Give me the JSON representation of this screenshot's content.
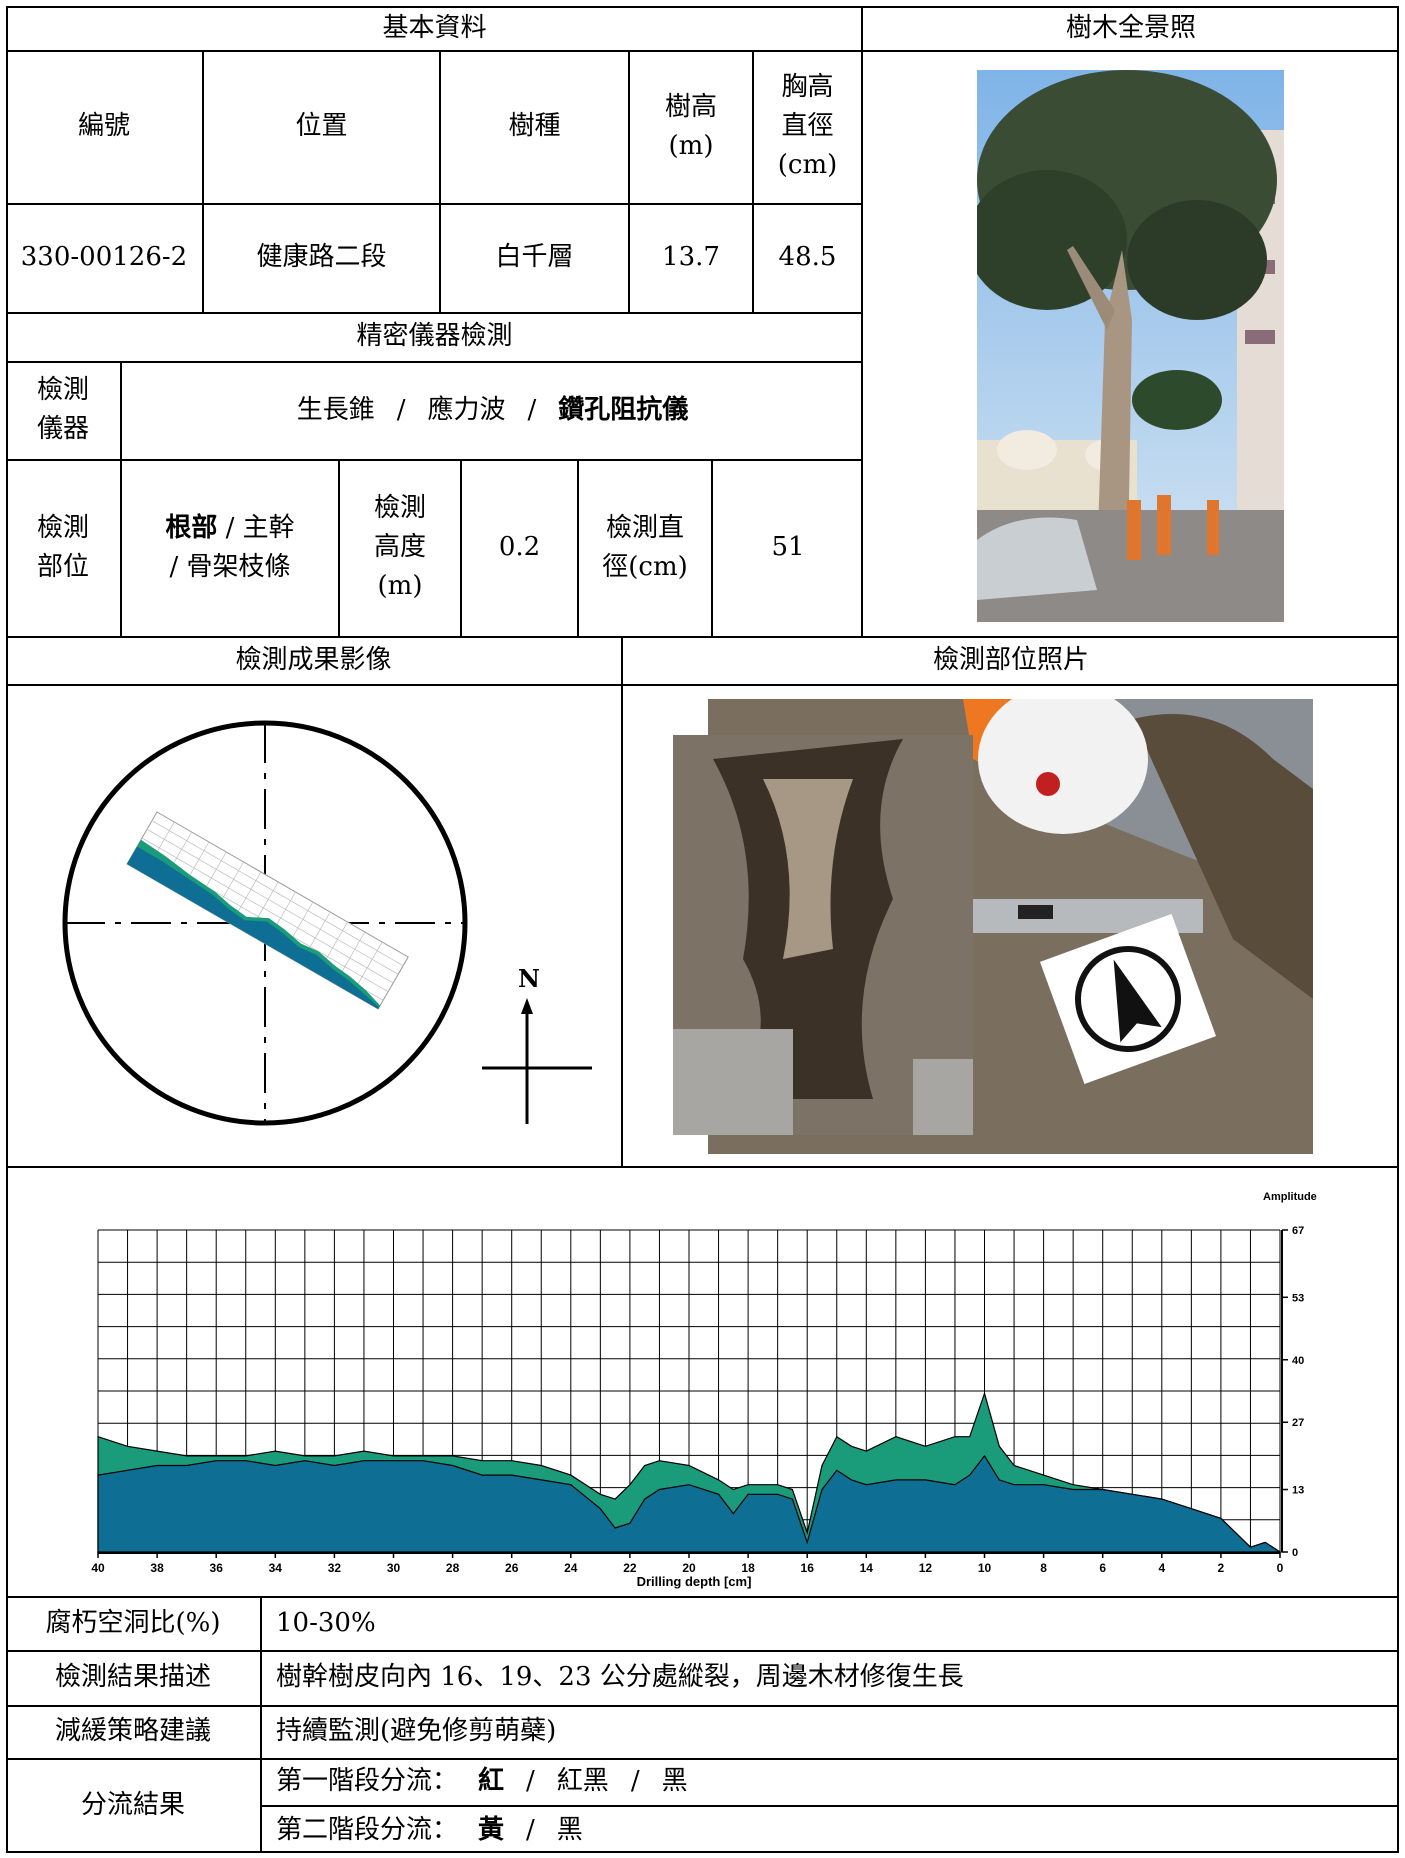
{
  "basic": {
    "header": "基本資料",
    "col_id": "編號",
    "col_location": "位置",
    "col_species": "樹種",
    "col_height_l1": "樹高",
    "col_height_l2": "(m)",
    "col_dbh_l1": "胸高",
    "col_dbh_l2": "直徑",
    "col_dbh_l3": "(cm)",
    "id": "330-00126-2",
    "location": "健康路二段",
    "species": "白千層",
    "height": "13.7",
    "dbh": "48.5"
  },
  "panorama": {
    "header": "樹木全景照"
  },
  "instrument": {
    "header": "精密儀器檢測",
    "label_l1": "檢測",
    "label_l2": "儀器",
    "opt1": "生長錐",
    "opt2": "應力波",
    "opt3": "鑽孔阻抗儀",
    "slash": "/",
    "part_label_l1": "檢測",
    "part_label_l2": "部位",
    "part_opt1": "根部",
    "part_opt2": "主幹",
    "part_opt3": "骨架枝條",
    "hgt_label_l1": "檢測",
    "hgt_label_l2": "高度",
    "hgt_label_l3": "(m)",
    "hgt_value": "0.2",
    "dia_label_l1": "檢測直",
    "dia_label_l2": "徑(cm)",
    "dia_value": "51"
  },
  "result_image": {
    "header": "檢測成果影像",
    "north": "N"
  },
  "site_photo": {
    "header": "檢測部位照片"
  },
  "chart_data": {
    "type": "area",
    "xlabel": "Drilling depth [cm]",
    "ylabel": "Amplitude [%]",
    "x_ticks": [
      40,
      38,
      36,
      34,
      32,
      30,
      28,
      26,
      24,
      22,
      20,
      18,
      16,
      14,
      12,
      10,
      8,
      6,
      4,
      2,
      0
    ],
    "y_ticks": [
      0,
      13,
      27,
      40,
      53,
      67
    ],
    "xlim": [
      40,
      0
    ],
    "ylim": [
      0,
      67
    ],
    "grid": true,
    "series": [
      {
        "color": "#1a9c7a",
        "x": [
          40,
          39,
          38,
          37,
          36,
          35,
          34,
          33,
          32,
          31,
          30,
          29,
          28,
          27,
          26,
          25,
          24,
          23,
          22.5,
          22,
          21.5,
          21,
          20,
          19,
          18.5,
          18,
          17,
          16.5,
          16,
          15.5,
          15,
          14.5,
          14,
          13,
          12,
          11,
          10.5,
          10,
          9.5,
          9,
          8,
          7,
          6,
          5,
          4,
          3,
          2,
          1.5,
          1,
          0.5,
          0
        ],
        "values": [
          24,
          22,
          21,
          20,
          20,
          20,
          21,
          20,
          20,
          21,
          20,
          20,
          20,
          19,
          19,
          18,
          16,
          12,
          11,
          14,
          18,
          19,
          18,
          15,
          13,
          14,
          14,
          13,
          4,
          18,
          24,
          22,
          21,
          24,
          22,
          24,
          24,
          33,
          22,
          18,
          16,
          14,
          13,
          12,
          11,
          9,
          7,
          4,
          1,
          2,
          0
        ]
      },
      {
        "color": "#0e6e94",
        "x": [
          40,
          39,
          38,
          37,
          36,
          35,
          34,
          33,
          32,
          31,
          30,
          29,
          28,
          27,
          26,
          25,
          24,
          23,
          22.5,
          22,
          21.5,
          21,
          20,
          19,
          18.5,
          18,
          17,
          16.5,
          16,
          15.5,
          15,
          14.5,
          14,
          13,
          12,
          11,
          10.5,
          10,
          9.5,
          9,
          8,
          7,
          6,
          5,
          4,
          3,
          2,
          1.5,
          1,
          0.5,
          0
        ],
        "values": [
          16,
          17,
          18,
          18,
          19,
          19,
          18,
          19,
          18,
          19,
          19,
          19,
          18,
          16,
          16,
          15,
          14,
          9,
          5,
          6,
          11,
          13,
          14,
          12,
          8,
          12,
          12,
          11,
          2,
          13,
          17,
          15,
          14,
          15,
          15,
          14,
          16,
          20,
          15,
          14,
          14,
          13,
          13,
          12,
          11,
          9,
          7,
          4,
          1,
          2,
          0
        ]
      }
    ]
  },
  "rows": {
    "decay_label": "腐朽空洞比(%)",
    "decay_value": "10-30%",
    "desc_label": "檢測結果描述",
    "desc_value": "樹幹樹皮向內 16、19、23 公分處縱裂，周邊木材修復生長",
    "strategy_label": "減緩策略建議",
    "strategy_value": "持續監測(避免修剪萌蘗)",
    "class_label": "分流結果",
    "stage1_label": "第一階段分流：",
    "stage1_opt1": "紅",
    "stage1_opt2": "紅黑",
    "stage1_opt3": "黑",
    "stage2_label": "第二階段分流：",
    "stage2_opt1": "黃",
    "stage2_opt2": "黑",
    "slash": "/"
  }
}
